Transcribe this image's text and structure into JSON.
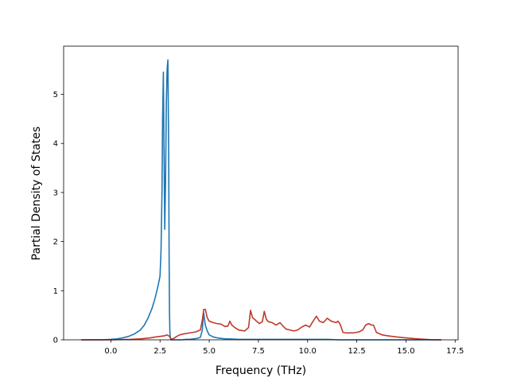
{
  "chart_data": {
    "type": "line",
    "title": "",
    "xlabel": "Frequency (THz)",
    "ylabel": "Partial Density of States",
    "xlim": [
      -2.4,
      17.65
    ],
    "ylim": [
      0,
      5.98
    ],
    "grid": false,
    "xticks": [
      0.0,
      2.5,
      5.0,
      7.5,
      10.0,
      12.5,
      15.0,
      17.5
    ],
    "xtick_labels": [
      "0.0",
      "2.5",
      "5.0",
      "7.5",
      "10.0",
      "12.5",
      "15.0",
      "17.5"
    ],
    "yticks": [
      0,
      1,
      2,
      3,
      4,
      5
    ],
    "ytick_labels": [
      "0",
      "1",
      "2",
      "3",
      "4",
      "5"
    ],
    "series": [
      {
        "color": "#1f77b4",
        "x": [
          -1.5,
          -1.0,
          -0.5,
          0.0,
          0.3,
          0.6,
          0.9,
          1.2,
          1.5,
          1.7,
          1.9,
          2.1,
          2.25,
          2.4,
          2.5,
          2.55,
          2.6,
          2.63,
          2.67,
          2.7,
          2.74,
          2.78,
          2.82,
          2.86,
          2.9,
          2.94,
          2.96,
          2.98,
          3.0,
          3.02,
          3.04,
          3.06,
          3.1,
          3.2,
          3.4,
          3.6,
          3.8,
          4.0,
          4.2,
          4.4,
          4.55,
          4.65,
          4.7,
          4.72,
          4.75,
          4.8,
          4.9,
          5.0,
          5.2,
          5.4,
          5.6,
          5.8,
          6.0,
          6.5,
          7.0,
          8.0,
          9.0,
          10.0,
          11.0,
          11.6,
          11.7,
          12.0,
          13.0,
          14.0,
          15.0,
          16.0,
          16.8
        ],
        "y": [
          0.0,
          0.0,
          0.0,
          0.01,
          0.02,
          0.04,
          0.07,
          0.12,
          0.2,
          0.3,
          0.45,
          0.65,
          0.85,
          1.1,
          1.3,
          1.8,
          3.0,
          4.5,
          5.45,
          4.0,
          2.25,
          3.2,
          4.8,
          5.5,
          5.7,
          3.8,
          1.8,
          0.6,
          0.15,
          0.05,
          0.01,
          0.0,
          0.0,
          0.0,
          0.0,
          0.0,
          0.01,
          0.01,
          0.02,
          0.03,
          0.05,
          0.2,
          0.5,
          0.55,
          0.45,
          0.3,
          0.18,
          0.1,
          0.06,
          0.04,
          0.03,
          0.02,
          0.02,
          0.01,
          0.01,
          0.01,
          0.01,
          0.01,
          0.01,
          0.0,
          0.0,
          0.0,
          0.0,
          0.0,
          0.0,
          0.0,
          0.0
        ]
      },
      {
        "color": "#c0392b",
        "x": [
          -1.5,
          -1.0,
          0.0,
          1.0,
          1.5,
          2.0,
          2.3,
          2.5,
          2.7,
          2.85,
          2.95,
          3.05,
          3.1,
          3.2,
          3.35,
          3.5,
          3.7,
          4.0,
          4.3,
          4.55,
          4.65,
          4.72,
          4.8,
          4.9,
          5.0,
          5.2,
          5.4,
          5.6,
          5.8,
          5.95,
          6.05,
          6.15,
          6.3,
          6.5,
          6.8,
          7.0,
          7.1,
          7.2,
          7.3,
          7.4,
          7.55,
          7.7,
          7.8,
          7.9,
          8.0,
          8.2,
          8.4,
          8.6,
          8.75,
          8.9,
          9.1,
          9.3,
          9.5,
          9.7,
          9.9,
          10.1,
          10.25,
          10.35,
          10.45,
          10.6,
          10.8,
          11.0,
          11.2,
          11.45,
          11.55,
          11.65,
          11.8,
          12.0,
          12.3,
          12.6,
          12.8,
          12.95,
          13.1,
          13.25,
          13.35,
          13.5,
          13.8,
          14.1,
          14.5,
          15.0,
          15.3,
          15.6,
          16.0,
          16.4,
          16.8
        ],
        "y": [
          0.0,
          0.0,
          0.0,
          0.01,
          0.02,
          0.04,
          0.06,
          0.07,
          0.08,
          0.1,
          0.08,
          0.03,
          0.01,
          0.03,
          0.07,
          0.1,
          0.12,
          0.14,
          0.16,
          0.2,
          0.4,
          0.62,
          0.62,
          0.45,
          0.38,
          0.35,
          0.33,
          0.32,
          0.27,
          0.28,
          0.38,
          0.3,
          0.25,
          0.2,
          0.18,
          0.25,
          0.6,
          0.45,
          0.42,
          0.38,
          0.33,
          0.37,
          0.58,
          0.42,
          0.37,
          0.35,
          0.3,
          0.35,
          0.28,
          0.22,
          0.2,
          0.18,
          0.2,
          0.26,
          0.3,
          0.26,
          0.36,
          0.42,
          0.48,
          0.38,
          0.35,
          0.44,
          0.38,
          0.35,
          0.38,
          0.32,
          0.15,
          0.14,
          0.14,
          0.16,
          0.2,
          0.3,
          0.33,
          0.3,
          0.3,
          0.15,
          0.1,
          0.08,
          0.06,
          0.04,
          0.03,
          0.02,
          0.01,
          0.0,
          0.0
        ]
      }
    ]
  }
}
